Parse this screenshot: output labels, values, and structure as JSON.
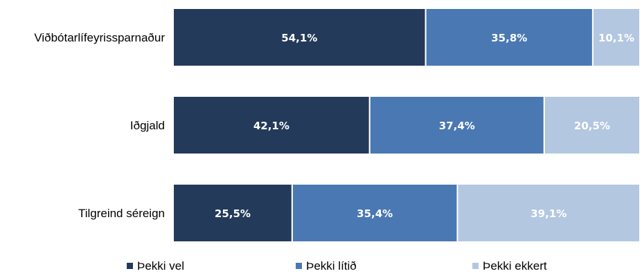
{
  "chart_data": {
    "type": "bar",
    "orientation": "horizontal",
    "stacked": "100%",
    "categories": [
      "Viðbótarlífeyrissparnaður",
      "Iðgjald",
      "Tilgreind séreign"
    ],
    "series": [
      {
        "name": "Þekki vel",
        "color": "#243a5a",
        "values": [
          54.1,
          42.1,
          25.5
        ],
        "labels": [
          "54,1%",
          "42,1%",
          "25,5%"
        ]
      },
      {
        "name": "Þekki lítið",
        "color": "#4a78b2",
        "values": [
          35.8,
          37.4,
          35.4
        ],
        "labels": [
          "35,8%",
          "37,4%",
          "35,4%"
        ]
      },
      {
        "name": "Þekki ekkert",
        "color": "#b3c7e1",
        "values": [
          10.1,
          20.5,
          39.1
        ],
        "labels": [
          "10,1%",
          "20,5%",
          "39,1%"
        ]
      }
    ],
    "xlim": [
      0,
      100
    ],
    "grid": false,
    "legend": "bottom"
  }
}
